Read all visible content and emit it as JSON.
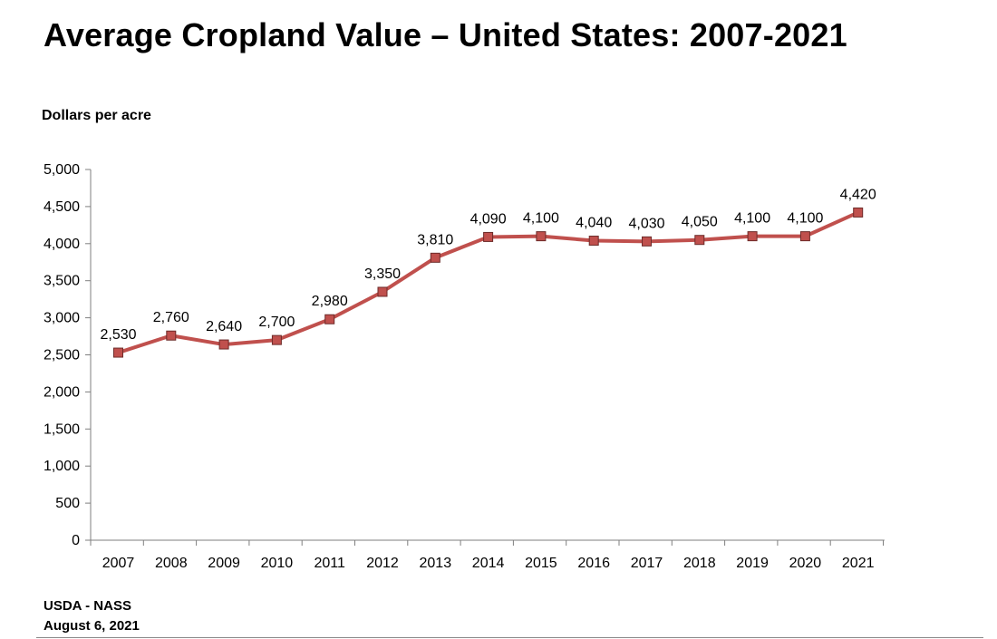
{
  "title": "Average Cropland Value – United States: 2007-2021",
  "footer": {
    "source": "USDA - NASS",
    "date": "August 6, 2021"
  },
  "chart_data": {
    "type": "line",
    "title": "Average Cropland Value – United States: 2007-2021",
    "ylabel": "Dollars per acre",
    "xlabel": "",
    "ylim": [
      0,
      5000
    ],
    "yticks": [
      0,
      500,
      1000,
      1500,
      2000,
      2500,
      3000,
      3500,
      4000,
      4500,
      5000
    ],
    "ytick_labels": [
      "0",
      "500",
      "1,000",
      "1,500",
      "2,000",
      "2,500",
      "3,000",
      "3,500",
      "4,000",
      "4,500",
      "5,000"
    ],
    "categories": [
      "2007",
      "2008",
      "2009",
      "2010",
      "2011",
      "2012",
      "2013",
      "2014",
      "2015",
      "2016",
      "2017",
      "2018",
      "2019",
      "2020",
      "2021"
    ],
    "series": [
      {
        "name": "Dollars per acre",
        "color": "#c0504d",
        "values": [
          2530,
          2760,
          2640,
          2700,
          2980,
          3350,
          3810,
          4090,
          4100,
          4040,
          4030,
          4050,
          4100,
          4100,
          4420
        ],
        "labels": [
          "2,530",
          "2,760",
          "2,640",
          "2,700",
          "2,980",
          "3,350",
          "3,810",
          "4,090",
          "4,100",
          "4,040",
          "4,030",
          "4,050",
          "4,100",
          "4,100",
          "4,420"
        ]
      }
    ],
    "legend": "none",
    "grid": false
  }
}
